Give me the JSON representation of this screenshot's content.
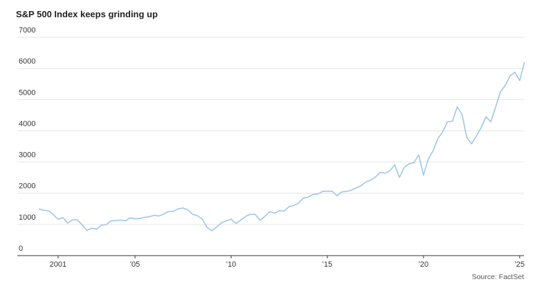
{
  "chart_data": {
    "type": "line",
    "title": "S&P 500 Index keeps grinding up",
    "source": "Source: FactSet",
    "x": [
      2000,
      2000.25,
      2000.5,
      2000.75,
      2001,
      2001.25,
      2001.5,
      2001.75,
      2002,
      2002.25,
      2002.5,
      2002.75,
      2003,
      2003.25,
      2003.5,
      2003.75,
      2004,
      2004.25,
      2004.5,
      2004.75,
      2005,
      2005.25,
      2005.5,
      2005.75,
      2006,
      2006.25,
      2006.5,
      2006.75,
      2007,
      2007.25,
      2007.5,
      2007.75,
      2008,
      2008.25,
      2008.5,
      2008.75,
      2009,
      2009.25,
      2009.5,
      2009.75,
      2010,
      2010.25,
      2010.5,
      2010.75,
      2011,
      2011.25,
      2011.5,
      2011.75,
      2012,
      2012.25,
      2012.5,
      2012.75,
      2013,
      2013.25,
      2013.5,
      2013.75,
      2014,
      2014.25,
      2014.5,
      2014.75,
      2015,
      2015.25,
      2015.5,
      2015.75,
      2016,
      2016.25,
      2016.5,
      2016.75,
      2017,
      2017.25,
      2017.5,
      2017.75,
      2018,
      2018.25,
      2018.5,
      2018.75,
      2019,
      2019.25,
      2019.5,
      2019.75,
      2020,
      2020.25,
      2020.5,
      2020.75,
      2021,
      2021.25,
      2021.5,
      2021.75,
      2022,
      2022.25,
      2022.5,
      2022.75,
      2023,
      2023.25,
      2023.5,
      2023.75,
      2024,
      2024.25,
      2024.5,
      2024.75,
      2025,
      2025.25
    ],
    "series": [
      {
        "name": "S&P 500",
        "color": "#9ec6ea",
        "values": [
          1499,
          1455,
          1437,
          1320,
          1160,
          1224,
          1041,
          1148,
          1147,
          990,
          815,
          880,
          848,
          975,
          996,
          1112,
          1126,
          1141,
          1115,
          1212,
          1181,
          1191,
          1229,
          1248,
          1295,
          1270,
          1336,
          1418,
          1421,
          1503,
          1527,
          1468,
          1323,
          1280,
          1166,
          903,
          798,
          919,
          1057,
          1115,
          1169,
          1031,
          1141,
          1258,
          1326,
          1321,
          1131,
          1258,
          1408,
          1362,
          1441,
          1426,
          1569,
          1606,
          1682,
          1848,
          1872,
          1960,
          1972,
          2059,
          2068,
          2063,
          1920,
          2044,
          2060,
          2099,
          2168,
          2239,
          2363,
          2423,
          2519,
          2674,
          2641,
          2718,
          2914,
          2507,
          2834,
          2942,
          2977,
          3231,
          2585,
          3100,
          3363,
          3756,
          3973,
          4298,
          4308,
          4766,
          4530,
          3785,
          3586,
          3840,
          4109,
          4450,
          4288,
          4770,
          5254,
          5460,
          5762,
          5882,
          5612,
          6205
        ]
      }
    ],
    "xlim": [
      1999.06,
      2025.22
    ],
    "xticks": [
      {
        "value": 2001,
        "label": "2001"
      },
      {
        "value": 2005,
        "label": "'05"
      },
      {
        "value": 2010,
        "label": "'10"
      },
      {
        "value": 2015,
        "label": "'15"
      },
      {
        "value": 2020,
        "label": "'20"
      },
      {
        "value": 2025,
        "label": "'25"
      }
    ],
    "ylim": [
      0,
      7000
    ],
    "yticks": [
      0,
      1000,
      2000,
      3000,
      4000,
      5000,
      6000,
      7000
    ],
    "grid": true
  }
}
